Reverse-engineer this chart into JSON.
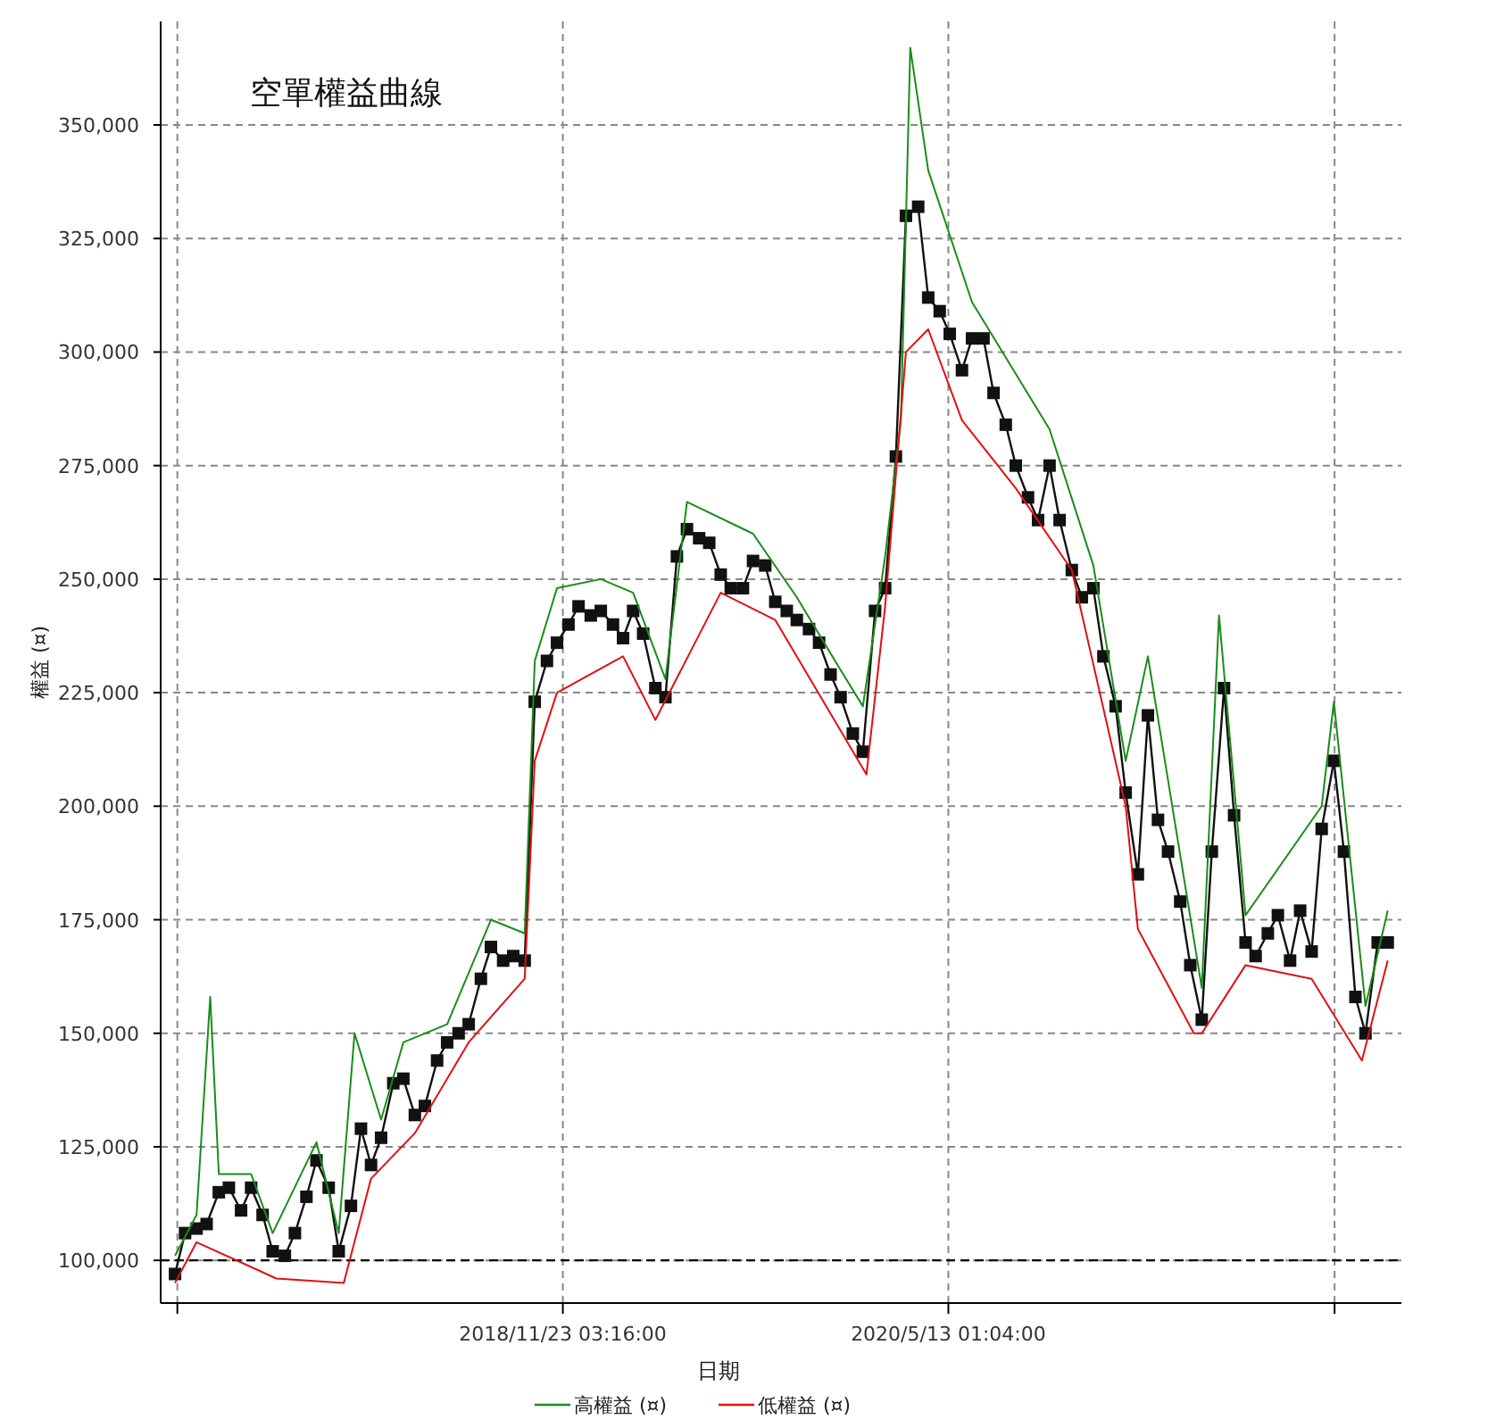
{
  "chart_data": {
    "type": "line",
    "title": "空單權益曲線",
    "xlabel": "日期",
    "ylabel": "權益 (¤)",
    "xlim": [
      "2017-05-12",
      "2022-02-03"
    ],
    "xticks": [
      {
        "value": "2017-06-04T05:28",
        "label": null
      },
      {
        "value": "2018-11-23T03:16",
        "label": "2018/11/23 03:16:00"
      },
      {
        "value": "2020-05-13T01:04",
        "label": "2020/5/13 01:04:00"
      },
      {
        "value": "2021-11-01T22:52",
        "label": null
      }
    ],
    "ylim": [
      90600,
      372800
    ],
    "yticks": [
      {
        "value": 100000,
        "label": "100,000"
      },
      {
        "value": 125000,
        "label": "125,000"
      },
      {
        "value": 150000,
        "label": "150,000"
      },
      {
        "value": 175000,
        "label": "175,000"
      },
      {
        "value": 200000,
        "label": "200,000"
      },
      {
        "value": 225000,
        "label": "225,000"
      },
      {
        "value": 250000,
        "label": "250,000"
      },
      {
        "value": 275000,
        "label": "275,000"
      },
      {
        "value": 300000,
        "label": "300,000"
      },
      {
        "value": 325000,
        "label": "325,000"
      },
      {
        "value": 350000,
        "label": "350,000"
      }
    ],
    "grid": true,
    "legend": "bottom",
    "line_style": "solid",
    "ref_lines": [
      {
        "axis": "y",
        "value": 100000,
        "color": "#000000",
        "line_style": "dashed"
      }
    ],
    "series": [
      {
        "color": "#111111",
        "marker": "square",
        "x": [
          "2017-06-01",
          "2017-06-15",
          "2017-07-01",
          "2017-07-15",
          "2017-08-01",
          "2017-08-15",
          "2017-09-01",
          "2017-09-15",
          "2017-10-01",
          "2017-10-15",
          "2017-11-01",
          "2017-11-15",
          "2017-12-01",
          "2017-12-15",
          "2018-01-01",
          "2018-01-15",
          "2018-02-01",
          "2018-02-15",
          "2018-03-01",
          "2018-03-15",
          "2018-04-01",
          "2018-04-15",
          "2018-05-01",
          "2018-05-15",
          "2018-06-01",
          "2018-06-15",
          "2018-07-01",
          "2018-07-15",
          "2018-08-01",
          "2018-08-15",
          "2018-09-01",
          "2018-09-15",
          "2018-10-01",
          "2018-10-15",
          "2018-11-01",
          "2018-11-15",
          "2018-12-01",
          "2018-12-15",
          "2019-01-01",
          "2019-01-15",
          "2019-02-01",
          "2019-02-15",
          "2019-03-01",
          "2019-03-15",
          "2019-04-01",
          "2019-04-15",
          "2019-05-01",
          "2019-05-15",
          "2019-06-01",
          "2019-06-15",
          "2019-07-01",
          "2019-07-15",
          "2019-08-01",
          "2019-08-15",
          "2019-09-01",
          "2019-09-15",
          "2019-10-01",
          "2019-10-15",
          "2019-11-01",
          "2019-11-15",
          "2019-12-01",
          "2019-12-15",
          "2020-01-01",
          "2020-01-15",
          "2020-02-01",
          "2020-02-15",
          "2020-03-01",
          "2020-03-15",
          "2020-04-01",
          "2020-04-15",
          "2020-05-01",
          "2020-05-15",
          "2020-06-01",
          "2020-06-15",
          "2020-07-01",
          "2020-07-15",
          "2020-08-01",
          "2020-08-15",
          "2020-09-01",
          "2020-09-15",
          "2020-10-01",
          "2020-10-15",
          "2020-11-01",
          "2020-11-15",
          "2020-12-01",
          "2020-12-15",
          "2021-01-01",
          "2021-01-15",
          "2021-02-01",
          "2021-02-15",
          "2021-03-01",
          "2021-03-15",
          "2021-04-01",
          "2021-04-15",
          "2021-05-01",
          "2021-05-15",
          "2021-06-01",
          "2021-06-15",
          "2021-07-01",
          "2021-07-15",
          "2021-08-01",
          "2021-08-15",
          "2021-09-01",
          "2021-09-15",
          "2021-10-01",
          "2021-10-15",
          "2021-11-01",
          "2021-11-15",
          "2021-12-01",
          "2021-12-15",
          "2022-01-01",
          "2022-01-15"
        ],
        "values": [
          97000,
          106000,
          107000,
          108000,
          115000,
          116000,
          111000,
          116000,
          110000,
          102000,
          101000,
          106000,
          114000,
          122000,
          116000,
          102000,
          112000,
          129000,
          121000,
          127000,
          139000,
          140000,
          132000,
          134000,
          144000,
          148000,
          150000,
          152000,
          162000,
          169000,
          166000,
          167000,
          166000,
          223000,
          232000,
          236000,
          240000,
          244000,
          242000,
          243000,
          240000,
          237000,
          243000,
          238000,
          226000,
          224000,
          255000,
          261000,
          259000,
          258000,
          251000,
          248000,
          248000,
          254000,
          253000,
          245000,
          243000,
          241000,
          239000,
          236000,
          229000,
          224000,
          216000,
          212000,
          243000,
          248000,
          277000,
          330000,
          332000,
          312000,
          309000,
          304000,
          296000,
          303000,
          303000,
          291000,
          284000,
          275000,
          268000,
          263000,
          275000,
          263000,
          252000,
          246000,
          248000,
          233000,
          222000,
          203000,
          185000,
          220000,
          197000,
          190000,
          179000,
          165000,
          153000,
          190000,
          226000,
          198000,
          170000,
          167000,
          172000,
          176000,
          166000,
          177000,
          168000,
          195000,
          210000,
          190000,
          158000,
          150000,
          170000,
          170000
        ]
      },
      {
        "name": "高權益 (¤)",
        "color": "#1a8c1a",
        "x": [
          "2017-06-01",
          "2017-07-01",
          "2017-07-20",
          "2017-08-01",
          "2017-09-15",
          "2017-10-15",
          "2017-12-15",
          "2018-01-15",
          "2018-02-06",
          "2018-03-15",
          "2018-04-15",
          "2018-06-15",
          "2018-08-15",
          "2018-10-01",
          "2018-10-15",
          "2018-11-15",
          "2019-01-15",
          "2019-03-01",
          "2019-04-15",
          "2019-05-15",
          "2019-08-15",
          "2019-10-15",
          "2019-12-15",
          "2020-01-15",
          "2020-02-15",
          "2020-03-08",
          "2020-03-21",
          "2020-04-15",
          "2020-06-15",
          "2020-10-01",
          "2020-12-01",
          "2021-01-15",
          "2021-02-15",
          "2021-05-01",
          "2021-05-25",
          "2021-07-01",
          "2021-10-15",
          "2021-11-01",
          "2021-12-15",
          "2022-01-15"
        ],
        "values": [
          101000,
          110000,
          158000,
          119000,
          119000,
          106000,
          126000,
          106000,
          150000,
          131000,
          148000,
          152000,
          175000,
          172000,
          232000,
          248000,
          250000,
          247000,
          228000,
          267000,
          260000,
          246000,
          230000,
          222000,
          255000,
          285000,
          367000,
          340000,
          311000,
          283000,
          253000,
          210000,
          233000,
          160000,
          242000,
          176000,
          200000,
          223000,
          156000,
          177000
        ]
      },
      {
        "name": "低權益 (¤)",
        "color": "#e01010",
        "x": [
          "2017-06-01",
          "2017-07-01",
          "2017-10-20",
          "2018-01-22",
          "2018-03-01",
          "2018-05-01",
          "2018-07-15",
          "2018-10-01",
          "2018-10-15",
          "2018-11-15",
          "2019-02-15",
          "2019-04-01",
          "2019-07-01",
          "2019-09-15",
          "2020-01-20",
          "2020-02-15",
          "2020-03-15",
          "2020-04-15",
          "2020-06-01",
          "2020-08-15",
          "2020-11-01",
          "2021-01-15",
          "2021-02-01",
          "2021-04-20",
          "2021-05-01",
          "2021-07-01",
          "2021-10-01",
          "2021-12-10",
          "2022-01-15"
        ],
        "values": [
          95000,
          104000,
          96000,
          95000,
          118000,
          128000,
          148000,
          162000,
          210000,
          225000,
          233000,
          219000,
          247000,
          241000,
          207000,
          244000,
          300000,
          305000,
          285000,
          270000,
          252000,
          200000,
          173000,
          150000,
          150000,
          165000,
          162000,
          144000,
          166000
        ]
      }
    ]
  }
}
